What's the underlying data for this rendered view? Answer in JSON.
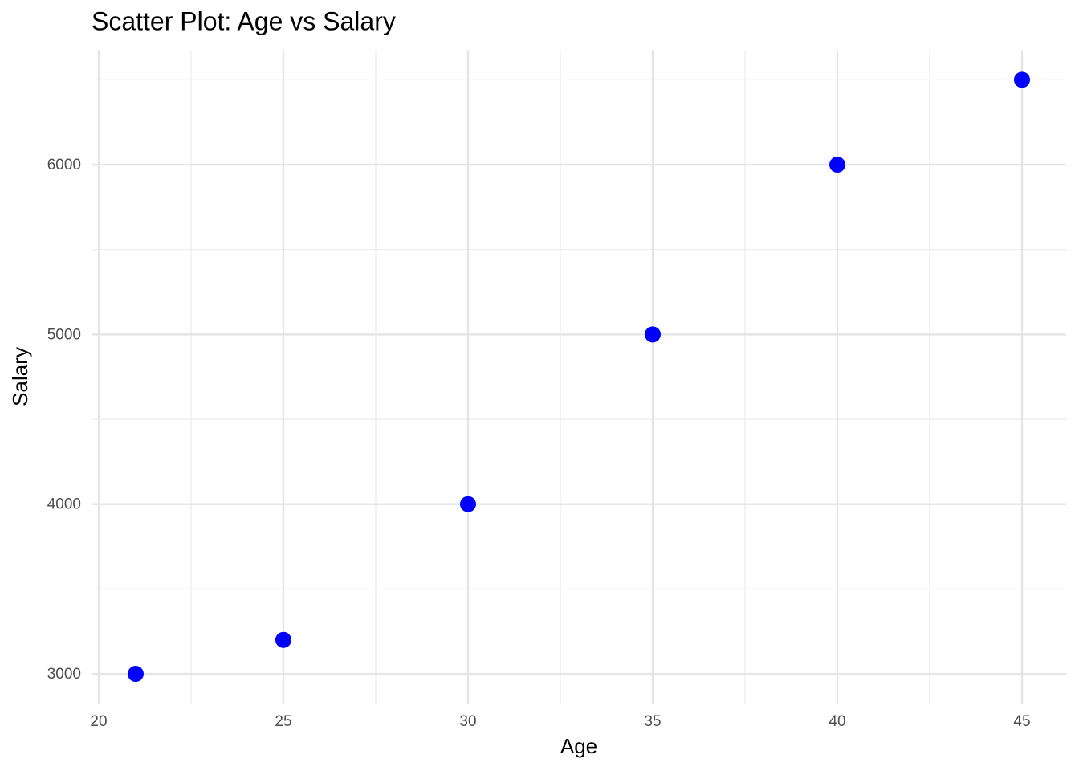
{
  "chart_data": {
    "type": "scatter",
    "title": "Scatter Plot: Age vs Salary",
    "x_label": "Age",
    "y_label": "Salary",
    "series": [
      {
        "name": "Salary",
        "color": "#0000ff",
        "x": [
          21,
          25,
          30,
          35,
          40,
          45
        ],
        "values": [
          3000,
          3200,
          4000,
          5000,
          6000,
          6500
        ]
      }
    ],
    "xlim": [
      19.8,
      46.2
    ],
    "xticks": [
      20,
      25,
      30,
      35,
      40,
      45
    ],
    "ylim": [
      2825,
      6675
    ],
    "yticks": [
      3000,
      4000,
      5000,
      6000
    ],
    "grid": true
  }
}
